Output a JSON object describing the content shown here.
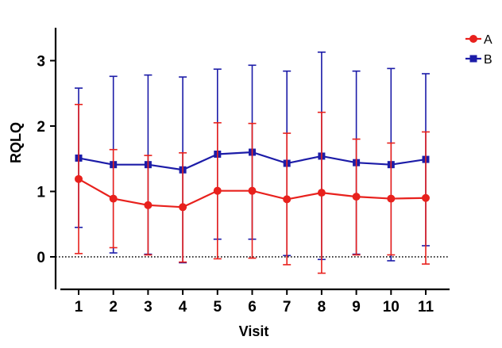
{
  "chart_data": {
    "type": "line",
    "title": "",
    "xlabel": "Visit",
    "ylabel": "RQLQ",
    "x": [
      1,
      2,
      3,
      4,
      5,
      6,
      7,
      8,
      9,
      10,
      11
    ],
    "xtick_labels": [
      "1",
      "2",
      "3",
      "4",
      "5",
      "6",
      "7",
      "8",
      "9",
      "10",
      "11"
    ],
    "ylim": [
      -0.5,
      3.5
    ],
    "yticks": [
      0,
      1,
      2,
      3
    ],
    "ytick_labels": [
      "0",
      "1",
      "2",
      "3"
    ],
    "reference_line": {
      "y": 0,
      "style": "dotted"
    },
    "legend_position": "top-right",
    "series": [
      {
        "name": "A",
        "color": "#e8211d",
        "marker": "circle",
        "values": [
          1.19,
          0.89,
          0.79,
          0.76,
          1.01,
          1.01,
          0.88,
          0.98,
          0.92,
          0.89,
          0.9
        ],
        "error_upper": [
          2.33,
          1.64,
          1.55,
          1.59,
          2.05,
          2.04,
          1.89,
          2.21,
          1.8,
          1.74,
          1.91
        ],
        "error_lower": [
          0.05,
          0.14,
          0.03,
          -0.08,
          -0.03,
          -0.02,
          -0.12,
          -0.25,
          0.03,
          0.03,
          -0.11
        ]
      },
      {
        "name": "B",
        "color": "#1c1ca8",
        "marker": "square",
        "values": [
          1.51,
          1.41,
          1.41,
          1.33,
          1.57,
          1.6,
          1.43,
          1.54,
          1.44,
          1.41,
          1.49
        ],
        "error_upper": [
          2.58,
          2.76,
          2.78,
          2.75,
          2.87,
          2.93,
          2.84,
          3.13,
          2.84,
          2.88,
          2.8
        ],
        "error_lower": [
          0.45,
          0.06,
          0.04,
          -0.09,
          0.27,
          0.27,
          0.02,
          -0.04,
          0.04,
          -0.06,
          0.17
        ]
      }
    ]
  }
}
